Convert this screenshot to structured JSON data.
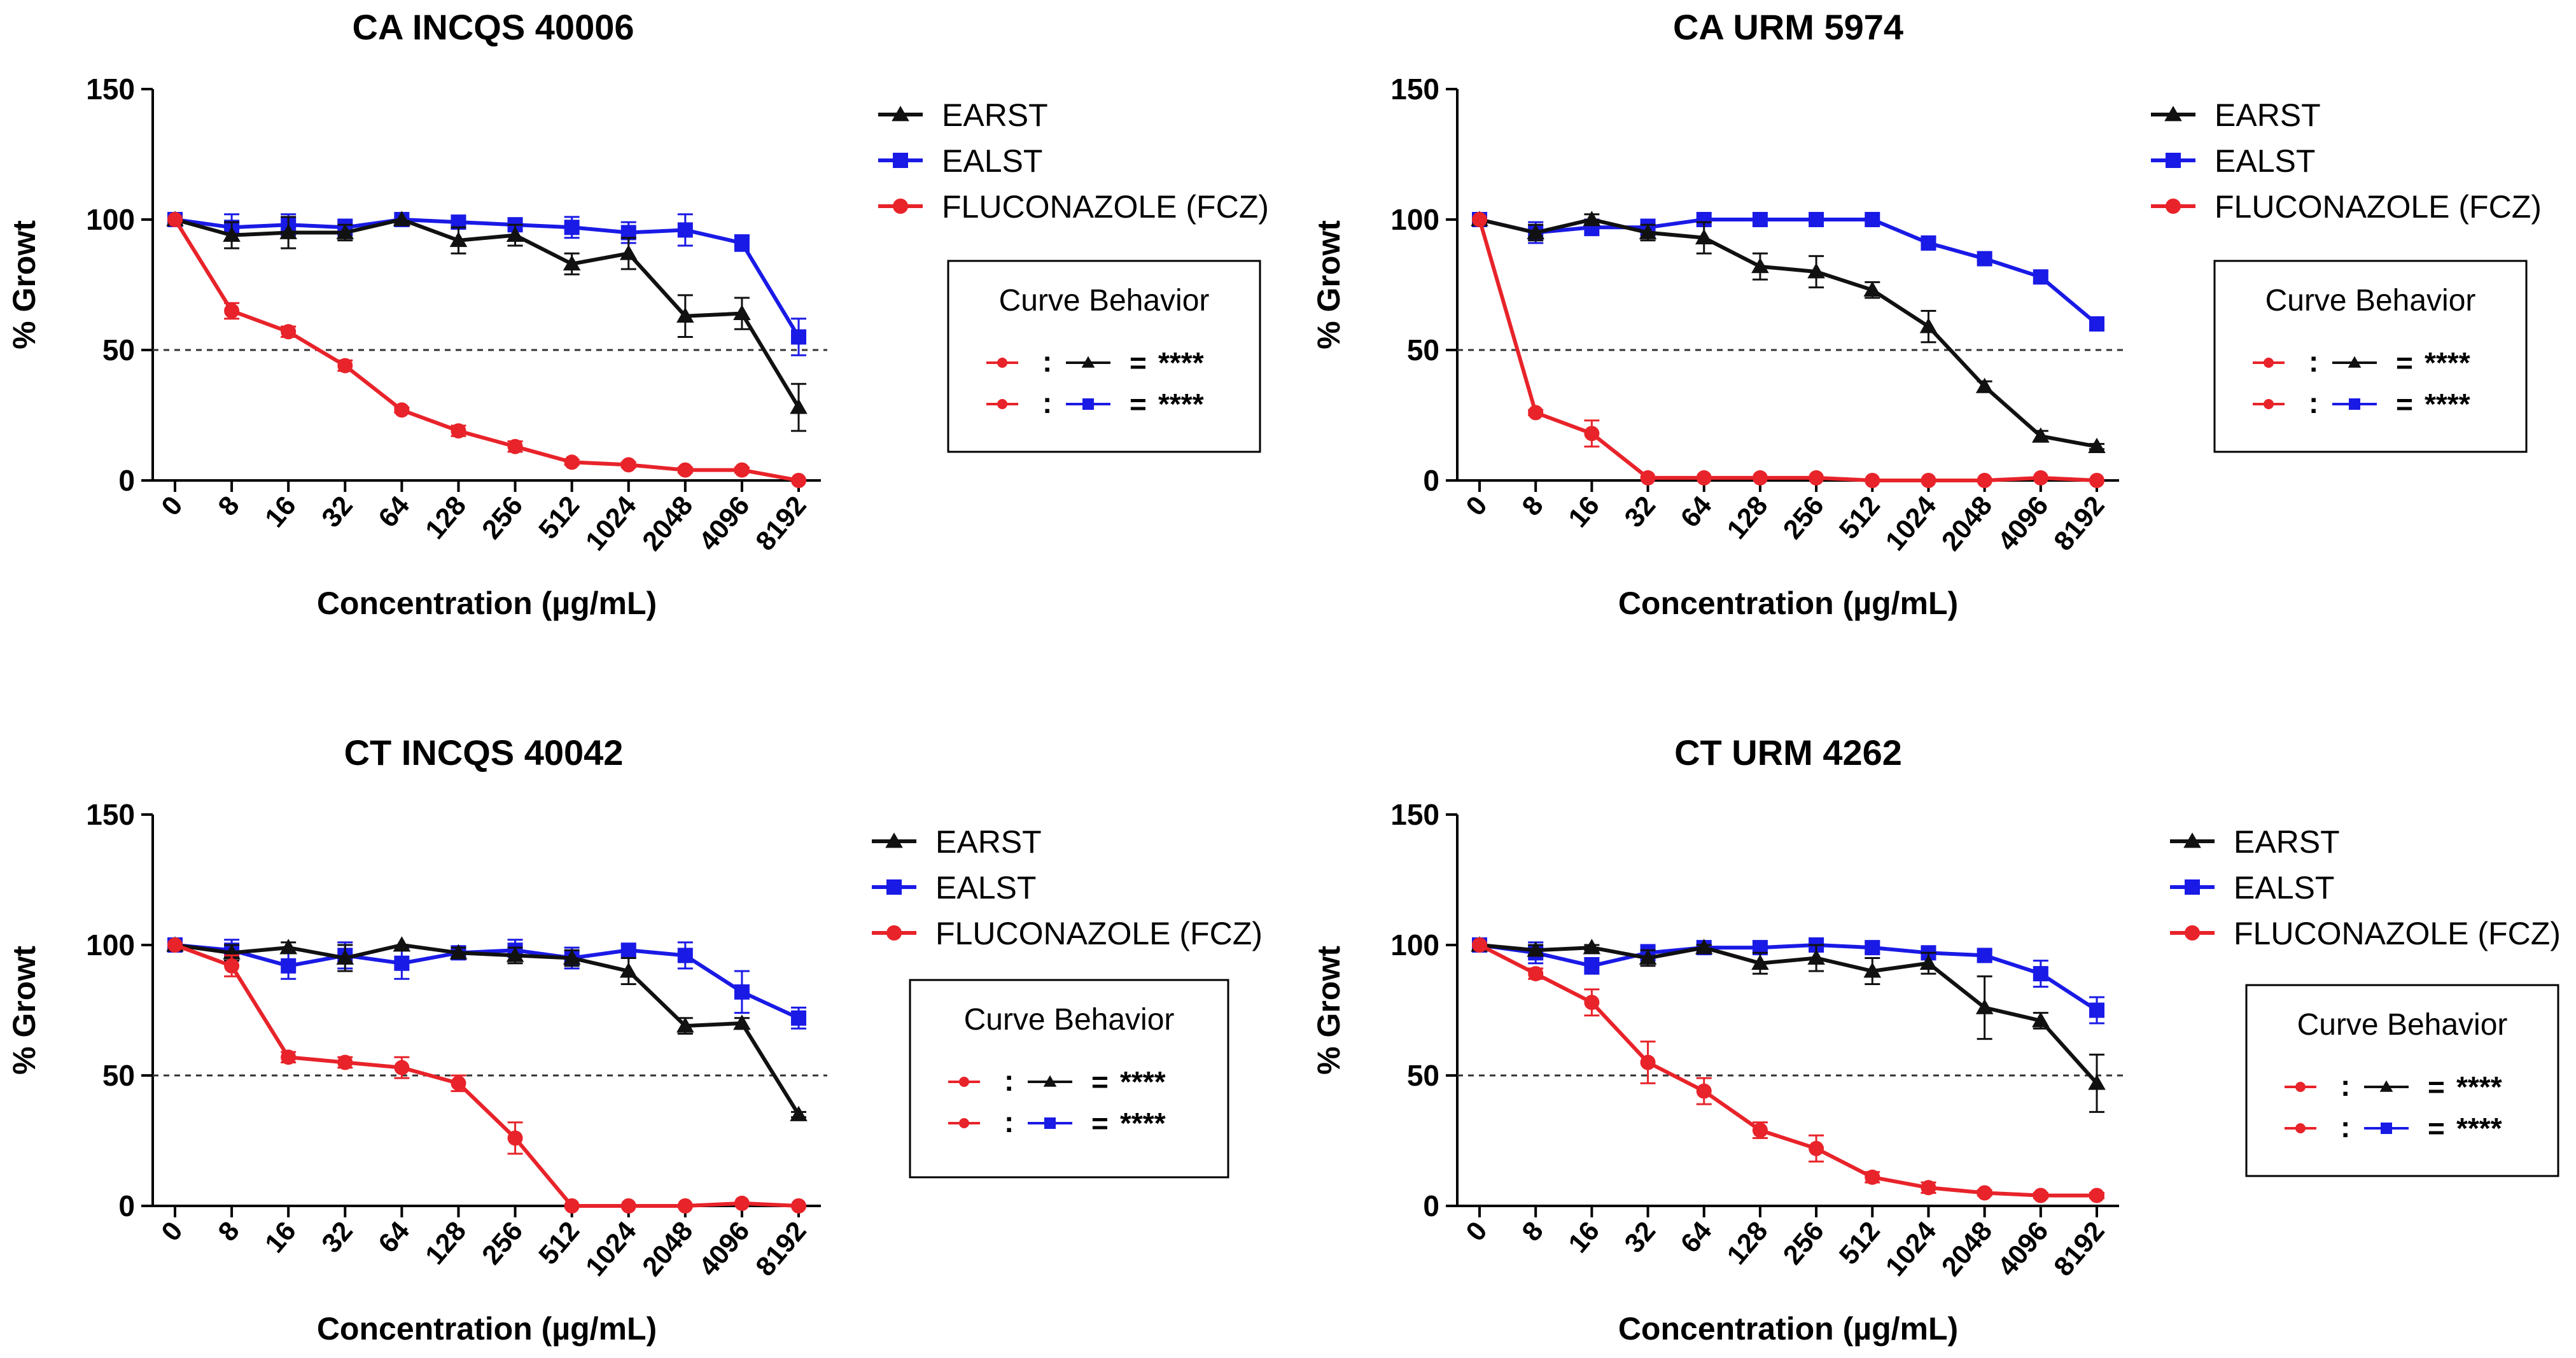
{
  "colors": {
    "black": "#111111",
    "blue": "#1a1ae6",
    "red": "#e8232a",
    "axis": "#000000",
    "dashed": "#333333"
  },
  "chart_data": [
    {
      "type": "line",
      "title": "CA INCQS 40006",
      "xlabel": "Concentration (µg/mL)",
      "ylabel": "% Growt",
      "categories": [
        "0",
        "8",
        "16",
        "32",
        "64",
        "128",
        "256",
        "512",
        "1024",
        "2048",
        "4096",
        "8192"
      ],
      "ylim": [
        0,
        150
      ],
      "yticks": [
        "0",
        "50",
        "100",
        "150"
      ],
      "reference_line": 50,
      "series": [
        {
          "name": "EARST",
          "marker": "triangle",
          "color": "black",
          "values": [
            100,
            94,
            95,
            95,
            100,
            92,
            94,
            83,
            87,
            63,
            64,
            28
          ],
          "errors": [
            0,
            5,
            6,
            3,
            0,
            5,
            4,
            4,
            6,
            8,
            6,
            9
          ]
        },
        {
          "name": "EALST",
          "marker": "square",
          "color": "blue",
          "values": [
            100,
            97,
            98,
            97,
            100,
            99,
            98,
            97,
            95,
            96,
            91,
            55
          ],
          "errors": [
            0,
            5,
            4,
            3,
            0,
            2,
            2,
            4,
            4,
            6,
            3,
            7
          ]
        },
        {
          "name": "FLUCONAZOLE (FCZ)",
          "marker": "circle",
          "color": "red",
          "values": [
            100,
            65,
            57,
            44,
            27,
            19,
            13,
            7,
            6,
            4,
            4,
            0
          ],
          "errors": [
            0,
            3,
            2,
            2,
            1,
            2,
            2,
            1,
            1,
            1,
            1,
            0
          ]
        }
      ],
      "curve_behavior": {
        "title": "Curve Behavior",
        "rows": [
          {
            "compare": "black",
            "sep": ":",
            "eq": "=",
            "result": "****"
          },
          {
            "compare": "blue",
            "sep": ":",
            "eq": "=",
            "result": "****"
          }
        ]
      }
    },
    {
      "type": "line",
      "title": "CA URM 5974",
      "xlabel": "Concentration (µg/mL)",
      "ylabel": "% Growt",
      "categories": [
        "0",
        "8",
        "16",
        "32",
        "64",
        "128",
        "256",
        "512",
        "1024",
        "2048",
        "4096",
        "8192"
      ],
      "ylim": [
        0,
        150
      ],
      "yticks": [
        "0",
        "50",
        "100",
        "150"
      ],
      "reference_line": 50,
      "series": [
        {
          "name": "EARST",
          "marker": "triangle",
          "color": "black",
          "values": [
            100,
            95,
            100,
            95,
            93,
            82,
            80,
            73,
            59,
            36,
            17,
            13
          ],
          "errors": [
            0,
            3,
            2,
            3,
            6,
            5,
            6,
            3,
            6,
            2,
            2,
            1
          ]
        },
        {
          "name": "EALST",
          "marker": "square",
          "color": "blue",
          "values": [
            100,
            95,
            97,
            97,
            100,
            100,
            100,
            100,
            91,
            85,
            78,
            60
          ],
          "errors": [
            0,
            4,
            3,
            3,
            0,
            0,
            0,
            0,
            2,
            1,
            2,
            1
          ]
        },
        {
          "name": "FLUCONAZOLE (FCZ)",
          "marker": "circle",
          "color": "red",
          "values": [
            100,
            26,
            18,
            1,
            1,
            1,
            1,
            0,
            0,
            0,
            1,
            0
          ],
          "errors": [
            0,
            1,
            5,
            0,
            0,
            0,
            0,
            0,
            0,
            0,
            0,
            0
          ]
        }
      ],
      "curve_behavior": {
        "title": "Curve Behavior",
        "rows": [
          {
            "compare": "black",
            "sep": ":",
            "eq": "=",
            "result": "****"
          },
          {
            "compare": "blue",
            "sep": ":",
            "eq": "=",
            "result": "****"
          }
        ]
      }
    },
    {
      "type": "line",
      "title": "CT INCQS 40042",
      "xlabel": "Concentration (µg/mL)",
      "ylabel": "% Growt",
      "categories": [
        "0",
        "8",
        "16",
        "32",
        "64",
        "128",
        "256",
        "512",
        "1024",
        "2048",
        "4096",
        "8192"
      ],
      "ylim": [
        0,
        150
      ],
      "yticks": [
        "0",
        "50",
        "100",
        "150"
      ],
      "reference_line": 50,
      "series": [
        {
          "name": "EARST",
          "marker": "triangle",
          "color": "black",
          "values": [
            100,
            97,
            99,
            95,
            100,
            97,
            96,
            95,
            90,
            69,
            70,
            35
          ],
          "errors": [
            0,
            3,
            2,
            5,
            0,
            2,
            3,
            3,
            5,
            3,
            2,
            1
          ]
        },
        {
          "name": "EALST",
          "marker": "square",
          "color": "blue",
          "values": [
            100,
            98,
            92,
            96,
            93,
            97,
            98,
            95,
            98,
            96,
            82,
            72
          ],
          "errors": [
            0,
            4,
            5,
            5,
            6,
            2,
            4,
            4,
            2,
            5,
            8,
            4
          ]
        },
        {
          "name": "FLUCONAZOLE (FCZ)",
          "marker": "circle",
          "color": "red",
          "values": [
            100,
            92,
            57,
            55,
            53,
            47,
            26,
            0,
            0,
            0,
            1,
            0
          ],
          "errors": [
            0,
            4,
            2,
            2,
            4,
            3,
            6,
            0,
            0,
            0,
            0,
            0
          ]
        }
      ],
      "curve_behavior": {
        "title": "Curve Behavior",
        "rows": [
          {
            "compare": "black",
            "sep": ":",
            "eq": "=",
            "result": "****"
          },
          {
            "compare": "blue",
            "sep": ":",
            "eq": "=",
            "result": "****"
          }
        ]
      }
    },
    {
      "type": "line",
      "title": "CT URM 4262",
      "xlabel": "Concentration (µg/mL)",
      "ylabel": "% Growt",
      "categories": [
        "0",
        "8",
        "16",
        "32",
        "64",
        "128",
        "256",
        "512",
        "1024",
        "2048",
        "4096",
        "8192"
      ],
      "ylim": [
        0,
        150
      ],
      "yticks": [
        "0",
        "50",
        "100",
        "150"
      ],
      "reference_line": 50,
      "series": [
        {
          "name": "EARST",
          "marker": "triangle",
          "color": "black",
          "values": [
            100,
            98,
            99,
            95,
            99,
            93,
            95,
            90,
            93,
            76,
            71,
            47
          ],
          "errors": [
            0,
            2,
            1,
            3,
            1,
            4,
            5,
            5,
            4,
            12,
            3,
            11
          ]
        },
        {
          "name": "EALST",
          "marker": "square",
          "color": "blue",
          "values": [
            100,
            97,
            92,
            97,
            99,
            99,
            100,
            99,
            97,
            96,
            89,
            75
          ],
          "errors": [
            0,
            4,
            3,
            3,
            1,
            2,
            2,
            2,
            2,
            2,
            5,
            5
          ]
        },
        {
          "name": "FLUCONAZOLE (FCZ)",
          "marker": "circle",
          "color": "red",
          "values": [
            100,
            89,
            78,
            55,
            44,
            29,
            22,
            11,
            7,
            5,
            4,
            4
          ],
          "errors": [
            0,
            2,
            5,
            8,
            5,
            3,
            5,
            2,
            2,
            1,
            1,
            1
          ]
        }
      ],
      "curve_behavior": {
        "title": "Curve Behavior",
        "rows": [
          {
            "compare": "black",
            "sep": ":",
            "eq": "=",
            "result": "****"
          },
          {
            "compare": "blue",
            "sep": ":",
            "eq": "=",
            "result": "****"
          }
        ]
      }
    }
  ]
}
